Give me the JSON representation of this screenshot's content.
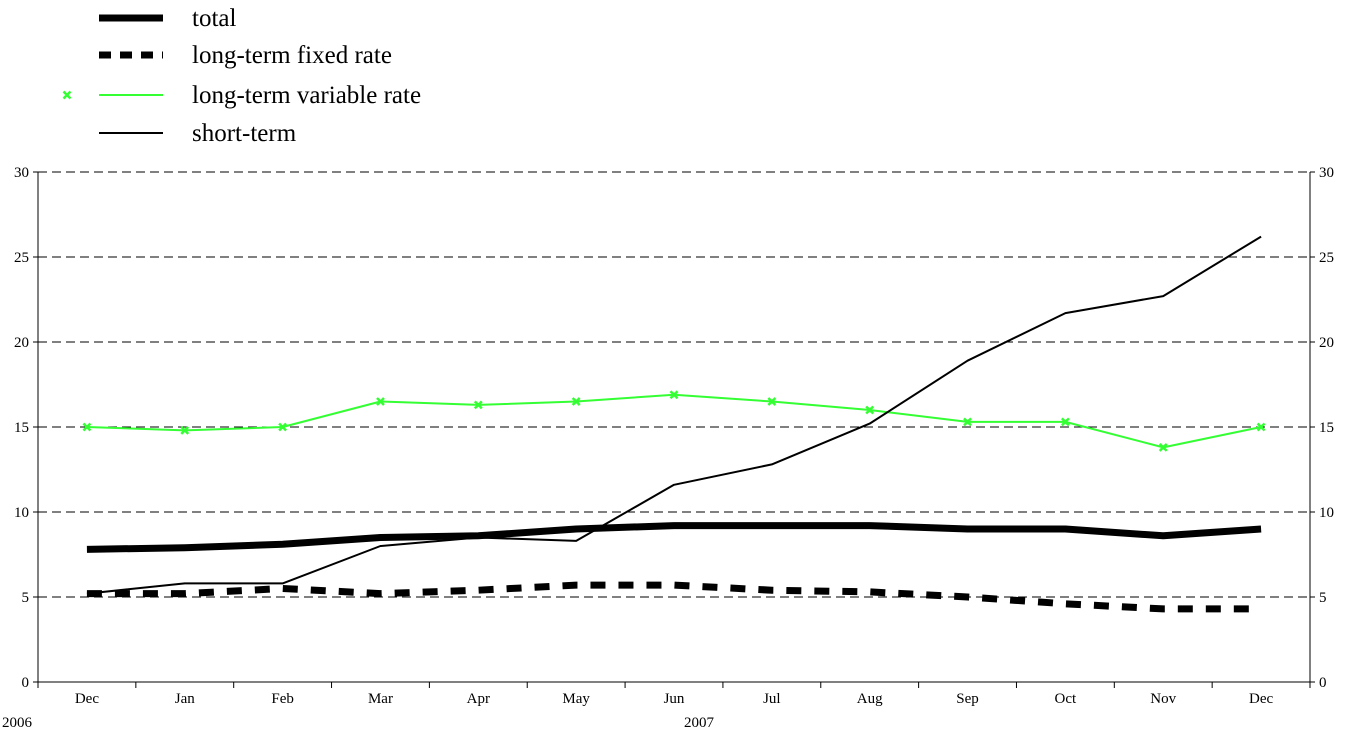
{
  "chart_data": {
    "type": "line",
    "categories": [
      "Dec",
      "Jan",
      "Feb",
      "Mar",
      "Apr",
      "May",
      "Jun",
      "Jul",
      "Aug",
      "Sep",
      "Oct",
      "Nov",
      "Dec"
    ],
    "year_labels": [
      {
        "text": "2006",
        "category_index": 0
      },
      {
        "text": "2007",
        "category_index": 6
      }
    ],
    "ylim": [
      0,
      30
    ],
    "yticks": [
      0,
      5,
      10,
      15,
      20,
      25,
      30
    ],
    "grid": "horizontal dashed",
    "secondary_y_axis": true,
    "legend_position": "top-left",
    "series": [
      {
        "name": "total",
        "color": "#000000",
        "style": "thick-solid",
        "values": [
          7.8,
          7.9,
          8.1,
          8.5,
          8.6,
          9.0,
          9.2,
          9.2,
          9.2,
          9.0,
          9.0,
          8.6,
          9.0
        ]
      },
      {
        "name": "long-term fixed rate",
        "color": "#000000",
        "style": "thick-dashed",
        "values": [
          5.2,
          5.2,
          5.5,
          5.2,
          5.4,
          5.7,
          5.7,
          5.4,
          5.3,
          5.0,
          4.6,
          4.3,
          4.3
        ]
      },
      {
        "name": "long-term variable rate",
        "color": "#33ff33",
        "style": "solid-markers",
        "marker": "x",
        "values": [
          15.0,
          14.8,
          15.0,
          16.5,
          16.3,
          16.5,
          16.9,
          16.5,
          16.0,
          15.3,
          15.3,
          13.8,
          15.0
        ]
      },
      {
        "name": "short-term",
        "color": "#000000",
        "style": "thin-solid",
        "values": [
          5.2,
          5.8,
          5.8,
          8.0,
          8.5,
          8.3,
          11.6,
          12.8,
          15.2,
          18.9,
          21.7,
          22.7,
          26.2
        ]
      }
    ]
  }
}
